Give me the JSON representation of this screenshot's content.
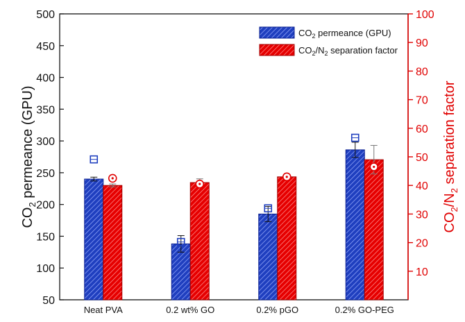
{
  "chart_data": {
    "type": "bar",
    "categories": [
      "Neat PVA",
      "0.2 wt% GO",
      "0.2% pGO",
      "0.2% GO-PEG"
    ],
    "y_left": {
      "label_prefix": "CO",
      "label_sub": "2",
      "label_suffix": " permeance (GPU)",
      "ylim": [
        50,
        500
      ],
      "ticks": [
        50,
        100,
        150,
        200,
        250,
        300,
        350,
        400,
        450,
        500
      ]
    },
    "y_right": {
      "label_a": "CO",
      "label_sub1": "2",
      "label_b": "/N",
      "label_sub2": "2",
      "label_c": " separation factor",
      "ylim": [
        0,
        100
      ],
      "ticks": [
        10,
        20,
        30,
        40,
        50,
        60,
        70,
        80,
        90,
        100
      ]
    },
    "series": [
      {
        "name": "CO2 permeance (GPU)",
        "legend_a": "CO",
        "legend_sub": "2",
        "legend_b": " permeance (GPU)",
        "axis": "left",
        "values": [
          240,
          138,
          185,
          286
        ],
        "error": [
          3,
          13,
          12,
          12
        ],
        "markers": [
          271,
          141,
          194,
          305
        ],
        "marker_shape": "square",
        "color": "#1f3fbf",
        "stroke": "#0a1f8f"
      },
      {
        "name": "CO2/N2 separation factor",
        "legend_a": "CO",
        "legend_sub": "2",
        "legend_b": "/N",
        "legend_sub2": "2",
        "legend_c": " separation factor",
        "axis": "right",
        "values": [
          40,
          41,
          43,
          49
        ],
        "error": [
          0.5,
          1.3,
          0.7,
          5
        ],
        "markers": [
          42.5,
          40.5,
          43,
          46.5
        ],
        "marker_shape": "circle",
        "color": "#e60000",
        "stroke": "#a00000"
      }
    ],
    "legend_position": "top-right",
    "grid": false
  }
}
